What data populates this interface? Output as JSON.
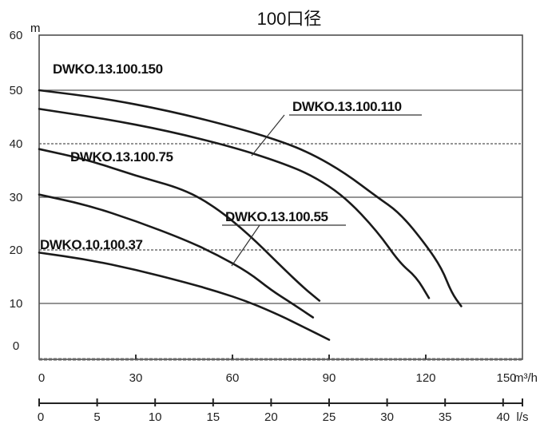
{
  "chart_data": {
    "type": "line",
    "title": "100口径",
    "y_unit": "m",
    "x_unit": "m³/h",
    "x2_unit": "l/s",
    "xlim": [
      0,
      150
    ],
    "ylim": [
      0,
      60
    ],
    "x_ticks": [
      "0",
      "30",
      "60",
      "90",
      "120",
      "150"
    ],
    "x2_ticks": [
      "0",
      "5",
      "10",
      "15",
      "20",
      "25",
      "30",
      "35",
      "40"
    ],
    "y_ticks": [
      "0",
      "10",
      "20",
      "30",
      "40",
      "50",
      "60"
    ],
    "gridlines": [
      10,
      20,
      30,
      40,
      50
    ],
    "series": [
      {
        "name": "DWKO.13.100.150",
        "x": [
          0,
          20,
          40,
          60,
          75,
          85,
          95,
          105,
          112,
          120,
          125,
          128,
          131
        ],
        "y": [
          50,
          48.5,
          46.2,
          43.2,
          40.5,
          38,
          34.5,
          30,
          27,
          21,
          16.5,
          12,
          9.5
        ]
      },
      {
        "name": "DWKO.13.100.110",
        "x": [
          0,
          20,
          40,
          60,
          75,
          85,
          95,
          105,
          112,
          117,
          121
        ],
        "y": [
          46.5,
          44.7,
          42.4,
          39.4,
          36.5,
          34,
          30,
          23.5,
          17.5,
          15,
          11
        ]
      },
      {
        "name": "DWKO.13.100.75",
        "x": [
          0,
          15,
          30,
          45,
          55,
          65,
          75,
          82,
          87
        ],
        "y": [
          39,
          37,
          34,
          31.5,
          28,
          23,
          17,
          13,
          10.5
        ]
      },
      {
        "name": "DWKO.13.100.55",
        "x": [
          0,
          15,
          30,
          45,
          55,
          65,
          72,
          78,
          85
        ],
        "y": [
          30.5,
          28.5,
          25.5,
          22,
          19.2,
          15.8,
          12.5,
          10.2,
          7.5
        ]
      },
      {
        "name": "DWKO.10.100.37",
        "x": [
          0,
          15,
          30,
          45,
          55,
          65,
          75,
          82,
          90
        ],
        "y": [
          19.5,
          18.2,
          16.3,
          14,
          12.3,
          10.3,
          7.8,
          5.8,
          3.5
        ]
      }
    ],
    "labels": [
      {
        "text": "DWKO.13.100.150"
      },
      {
        "text": "DWKO.13.100.110"
      },
      {
        "text": "DWKO.13.100.75"
      },
      {
        "text": "DWKO.13.100.55"
      },
      {
        "text": "DWKO.10.100.37"
      }
    ],
    "grid": true
  }
}
